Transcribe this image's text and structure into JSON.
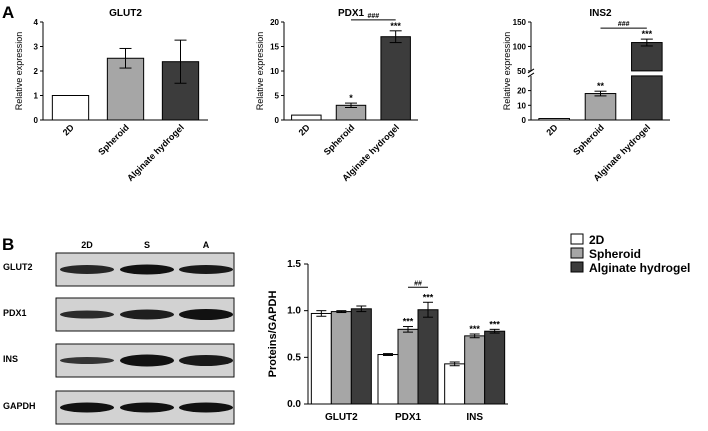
{
  "panel_labels": [
    "A",
    "B"
  ],
  "blot": {
    "lanes": [
      "2D",
      "S",
      "A"
    ],
    "rows": [
      "GLUT2",
      "PDX1",
      "INS",
      "GAPDH"
    ]
  },
  "colors": {
    "2D": "#ffffff",
    "Spheroid": "#a6a6a6",
    "Alginate hydrogel": "#3c3c3c"
  },
  "chart_data": [
    {
      "type": "bar",
      "title": "GLUT2",
      "ylabel": "Relative expression",
      "categories": [
        "2D",
        "Spheroid",
        "Alginate hydrogel"
      ],
      "values": [
        1.0,
        2.52,
        2.38
      ],
      "errors": [
        0,
        0.4,
        0.88
      ],
      "ylim": [
        0,
        4
      ],
      "yticks": [
        "0",
        "1",
        "2",
        "3",
        "4"
      ],
      "annotations": []
    },
    {
      "type": "bar",
      "title": "PDX1",
      "ylabel": "Relative expression",
      "categories": [
        "2D",
        "Spheroid",
        "Alginate hydrogel"
      ],
      "values": [
        1.0,
        3.0,
        17.0
      ],
      "errors": [
        0,
        0.45,
        1.2
      ],
      "ylim": [
        0,
        20
      ],
      "yticks": [
        "0",
        "5",
        "10",
        "15",
        "20"
      ],
      "annotations": [
        "",
        "*",
        "***"
      ],
      "bracket": "###"
    },
    {
      "type": "bar",
      "title": "INS2",
      "ylabel": "Relative expression",
      "categories": [
        "2D",
        "Spheroid",
        "Alginate hydrogel"
      ],
      "values": [
        1.0,
        18.0,
        108.0
      ],
      "errors": [
        0,
        1.6,
        7.0
      ],
      "ylim": [
        0,
        150
      ],
      "axis_break": [
        30,
        50
      ],
      "yticks": [
        "0",
        "10",
        "20",
        "50",
        "100",
        "150"
      ],
      "annotations": [
        "",
        "**",
        "***"
      ],
      "bracket": "###"
    },
    {
      "type": "bar",
      "ylabel": "Proteins/GAPDH",
      "categories": [
        "GLUT2",
        "PDX1",
        "INS"
      ],
      "ylim": [
        0,
        1.5
      ],
      "yticks": [
        "0.0",
        "0.5",
        "1.0",
        "1.5"
      ],
      "legend": "top-right",
      "series": [
        {
          "name": "2D",
          "values": [
            0.97,
            0.53,
            0.43
          ],
          "errors": [
            0.03,
            0.01,
            0.02
          ],
          "annotations": [
            "",
            "",
            ""
          ]
        },
        {
          "name": "Spheroid",
          "values": [
            0.99,
            0.8,
            0.73
          ],
          "errors": [
            0.01,
            0.03,
            0.02
          ],
          "annotations": [
            "",
            "***",
            "***"
          ]
        },
        {
          "name": "Alginate hydrogel",
          "values": [
            1.02,
            1.01,
            0.78
          ],
          "errors": [
            0.03,
            0.08,
            0.02
          ],
          "annotations": [
            "",
            "***",
            "***"
          ]
        }
      ],
      "bracket": "##"
    }
  ]
}
